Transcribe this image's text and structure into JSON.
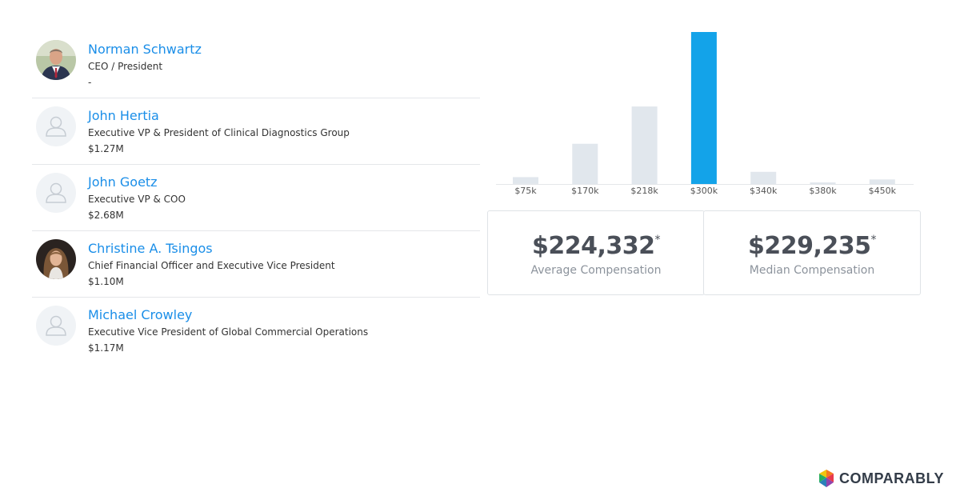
{
  "executives": [
    {
      "name": "Norman Schwartz",
      "title": "CEO / President",
      "compensation": "-",
      "avatar": "photo-man"
    },
    {
      "name": "John Hertia",
      "title": "Executive VP & President of Clinical Diagnostics Group",
      "compensation": "$1.27M",
      "avatar": "placeholder"
    },
    {
      "name": "John Goetz",
      "title": "Executive VP & COO",
      "compensation": "$2.68M",
      "avatar": "placeholder"
    },
    {
      "name": "Christine A. Tsingos",
      "title": "Chief Financial Officer and Executive Vice President",
      "compensation": "$1.10M",
      "avatar": "photo-woman"
    },
    {
      "name": "Michael Crowley",
      "title": "Executive Vice President of Global Commercial Operations",
      "compensation": "$1.17M",
      "avatar": "placeholder"
    }
  ],
  "chart_data": {
    "type": "bar",
    "title": "",
    "xlabel": "",
    "ylabel": "",
    "categories": [
      "$75k",
      "$170k",
      "$218k",
      "$300k",
      "$340k",
      "$380k",
      "$450k"
    ],
    "values": [
      4.5,
      26.5,
      51,
      100,
      8,
      1,
      3
    ],
    "highlight_index": 3,
    "ylim": [
      0,
      100
    ],
    "colors": {
      "bar": "#e1e7ed",
      "highlight": "#13a3e9",
      "baseline": "#e4e7ea",
      "tick": "#555555"
    }
  },
  "stats": {
    "average": {
      "value": "$224,332",
      "marker": "*",
      "label": "Average Compensation"
    },
    "median": {
      "value": "$229,235",
      "marker": "*",
      "label": "Median Compensation"
    }
  },
  "brand": {
    "name": "COMPARABLY"
  },
  "colors": {
    "link": "#1a8ee8",
    "text": "#333333",
    "muted": "#8c939c"
  }
}
